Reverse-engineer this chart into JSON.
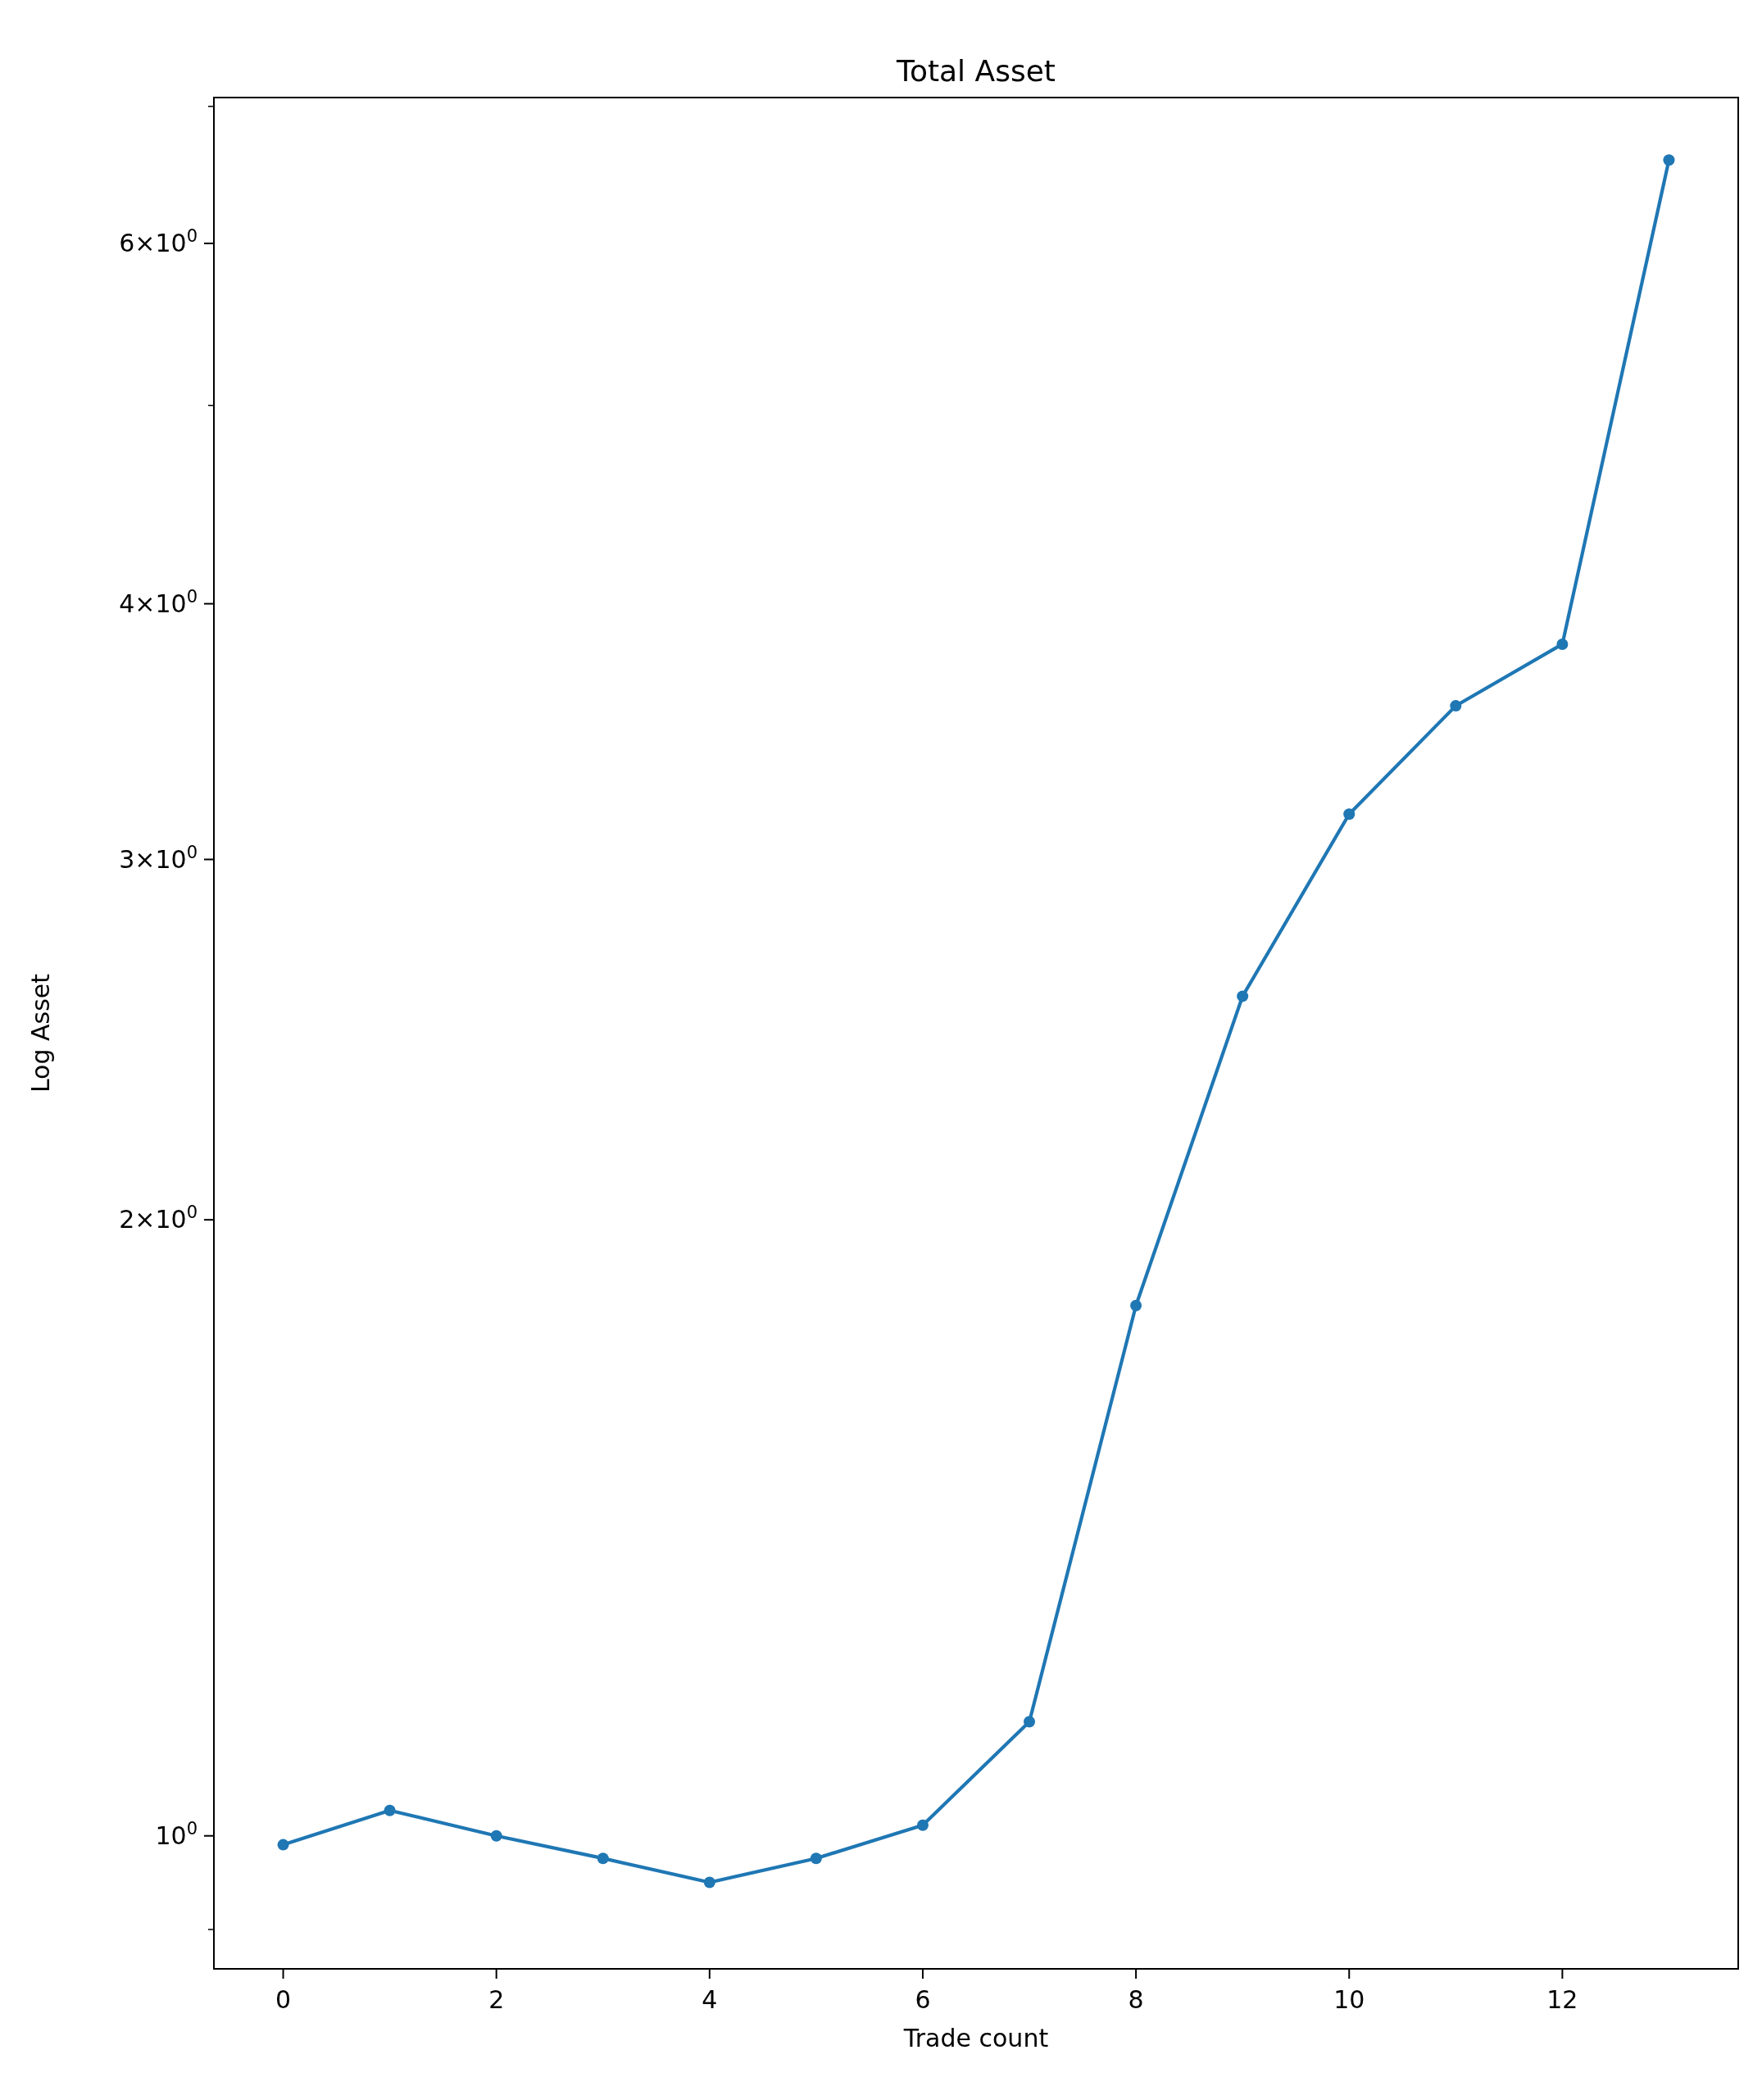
{
  "chart_data": {
    "type": "line",
    "title": "Total Asset",
    "xlabel": "Trade count",
    "ylabel": "Log Asset",
    "log": "y",
    "marker": "circle",
    "line_style": "solid",
    "x": [
      0,
      1,
      2,
      3,
      4,
      5,
      6,
      7,
      8,
      9,
      10,
      11,
      12,
      13
    ],
    "series": [
      {
        "color": "#1f77b4",
        "values": [
          0.99,
          1.029,
          1.0,
          0.975,
          0.949,
          0.975,
          1.012,
          1.137,
          1.816,
          2.572,
          3.157,
          3.566,
          3.822,
          6.59
        ]
      }
    ],
    "xlim": [
      -0.65,
      13.65
    ],
    "xticks": [
      0,
      2,
      4,
      6,
      8,
      10,
      12
    ],
    "ylim": [
      0.861,
      7.07
    ],
    "yticks": [
      {
        "value": 0.9,
        "label": null
      },
      {
        "value": 1,
        "label": "10$^{0}$"
      },
      {
        "value": 2,
        "label": "2×10$^{0}$"
      },
      {
        "value": 3,
        "label": "3×10$^{0}$"
      },
      {
        "value": 4,
        "label": "4×10$^{0}$"
      },
      {
        "value": 5,
        "label": null
      },
      {
        "value": 6,
        "label": "6×10$^{0}$"
      },
      {
        "value": 7,
        "label": null
      }
    ]
  }
}
